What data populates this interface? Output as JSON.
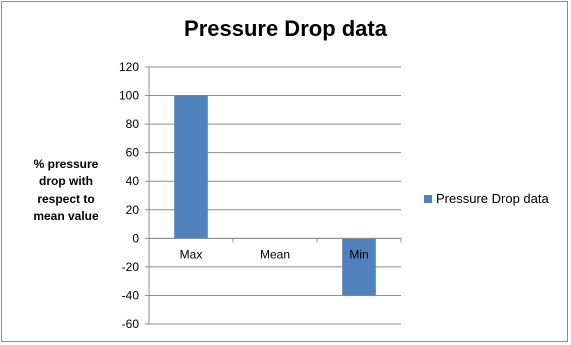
{
  "chart_data": {
    "type": "bar",
    "title": "Pressure Drop data",
    "xlabel": "",
    "ylabel_lines": [
      "% pressure",
      "drop with",
      "respect to",
      "mean value"
    ],
    "categories": [
      "Max",
      "Mean",
      "Min"
    ],
    "series": [
      {
        "name": "Pressure Drop data",
        "values": [
          100,
          0,
          -40
        ],
        "color": "#4f81bd"
      }
    ],
    "ylim": [
      -60,
      120
    ],
    "yticks": [
      -60,
      -40,
      -20,
      0,
      20,
      40,
      60,
      80,
      100,
      120
    ],
    "grid": true,
    "legend": "right"
  }
}
